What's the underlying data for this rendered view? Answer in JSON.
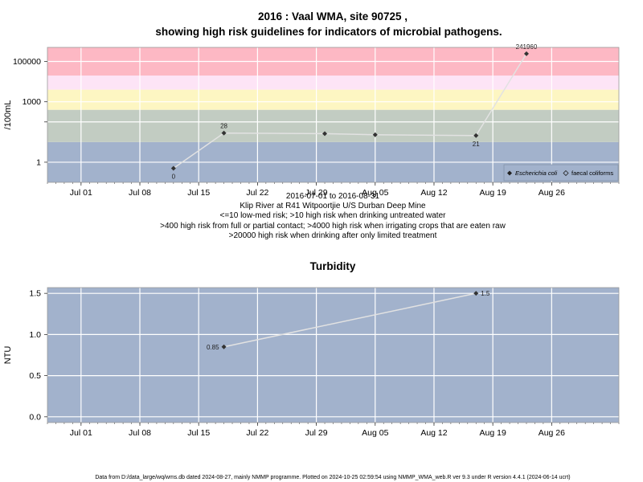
{
  "footer": "Data from D:/data_large/wq/wms.db dated 2024-08-27, mainly NMMP programme. Plotted on 2024-10-25 02:59:54 using NMMP_WMA_web.R ver 9.3 under R version 4.4.1 (2024-06-14 ucrt)",
  "colors": {
    "risk_low": "#a2b2cc",
    "risk_drinking": "#c2ccc2",
    "risk_contact": "#fdf6c2",
    "risk_irrigation": "#fde4f6",
    "risk_limited": "#fdb8c4",
    "panel_bg": "#a2b2cc",
    "line": "#e2e2e2",
    "marker": "#333333"
  },
  "chart_data": [
    {
      "type": "line",
      "title": "2016 : Vaal WMA, site 90725 ,",
      "subtitle": "showing high risk guidelines for indicators of microbial pathogens.",
      "ylabel": "/100mL",
      "y_scale": "log10",
      "ylim": [
        0.1,
        500000
      ],
      "xlim": [
        "2016-06-27",
        "2016-09-03"
      ],
      "x_ticks": [
        {
          "date": "2016-07-01",
          "label": "Jul 01"
        },
        {
          "date": "2016-07-08",
          "label": "Jul 08"
        },
        {
          "date": "2016-07-15",
          "label": "Jul 15"
        },
        {
          "date": "2016-07-22",
          "label": "Jul 22"
        },
        {
          "date": "2016-07-29",
          "label": "Jul 29"
        },
        {
          "date": "2016-08-05",
          "label": "Aug 05"
        },
        {
          "date": "2016-08-12",
          "label": "Aug 12"
        },
        {
          "date": "2016-08-19",
          "label": "Aug 19"
        },
        {
          "date": "2016-08-26",
          "label": "Aug 26"
        }
      ],
      "y_ticks": [
        {
          "value": 1,
          "label": "1"
        },
        {
          "value": 100,
          "label": ""
        },
        {
          "value": 1000,
          "label": "1000"
        },
        {
          "value": 100000,
          "label": "100000"
        }
      ],
      "bands": [
        {
          "from": 0.1,
          "to": 10,
          "color": "#a2b2cc"
        },
        {
          "from": 10,
          "to": 400,
          "color": "#c2ccc2"
        },
        {
          "from": 400,
          "to": 4000,
          "color": "#fdf6c2"
        },
        {
          "from": 4000,
          "to": 20000,
          "color": "#fde4f6"
        },
        {
          "from": 20000,
          "to": 500000,
          "color": "#fdb8c4"
        }
      ],
      "series": [
        {
          "name": "Escherichia coli",
          "marker": "filled-diamond",
          "points": [
            {
              "x": "2016-07-12",
              "y": 0.5,
              "label": "0",
              "label_pos": "below"
            },
            {
              "x": "2016-07-18",
              "y": 28,
              "label": "28",
              "label_pos": "above"
            },
            {
              "x": "2016-07-30",
              "y": 26,
              "label": "",
              "label_pos": "none"
            },
            {
              "x": "2016-08-05",
              "y": 23,
              "label": "",
              "label_pos": "none"
            },
            {
              "x": "2016-08-17",
              "y": 21,
              "label": "21",
              "label_pos": "below"
            },
            {
              "x": "2016-08-23",
              "y": 241960,
              "label": "241960",
              "label_pos": "above"
            }
          ]
        }
      ],
      "legend": {
        "position": "bottom-right",
        "entries": [
          {
            "marker": "filled-diamond",
            "label": "Escherichia coli",
            "italic": true
          },
          {
            "marker": "open-diamond",
            "label": "faecal coliforms",
            "italic": false
          }
        ]
      },
      "captions": [
        "2016-07-01 to 2016-08-31",
        "Klip River at R41 Witpoortjie U/S Durban Deep Mine",
        "<=10 low-med risk; >10 high risk when drinking untreated water",
        ">400 high risk from full or partial contact; >4000 high risk when irrigating crops that are eaten raw",
        ">20000 high risk when drinking after only limited treatment"
      ]
    },
    {
      "type": "line",
      "title": "Turbidity",
      "ylabel": "NTU",
      "ylim": [
        -0.07,
        1.57
      ],
      "xlim": [
        "2016-06-27",
        "2016-09-03"
      ],
      "x_ticks": [
        {
          "date": "2016-07-01",
          "label": "Jul 01"
        },
        {
          "date": "2016-07-08",
          "label": "Jul 08"
        },
        {
          "date": "2016-07-15",
          "label": "Jul 15"
        },
        {
          "date": "2016-07-22",
          "label": "Jul 22"
        },
        {
          "date": "2016-07-29",
          "label": "Jul 29"
        },
        {
          "date": "2016-08-05",
          "label": "Aug 05"
        },
        {
          "date": "2016-08-12",
          "label": "Aug 12"
        },
        {
          "date": "2016-08-19",
          "label": "Aug 19"
        },
        {
          "date": "2016-08-26",
          "label": "Aug 26"
        }
      ],
      "y_ticks": [
        {
          "value": 0,
          "label": "0.0"
        },
        {
          "value": 0.5,
          "label": "0.5"
        },
        {
          "value": 1.0,
          "label": "1.0"
        },
        {
          "value": 1.5,
          "label": "1.5"
        }
      ],
      "series": [
        {
          "name": "",
          "marker": "filled-diamond",
          "points": [
            {
              "x": "2016-07-18",
              "y": 0.85,
              "label": "0.85",
              "label_pos": "left"
            },
            {
              "x": "2016-08-17",
              "y": 1.5,
              "label": "1.5",
              "label_pos": "right"
            }
          ]
        }
      ]
    }
  ]
}
